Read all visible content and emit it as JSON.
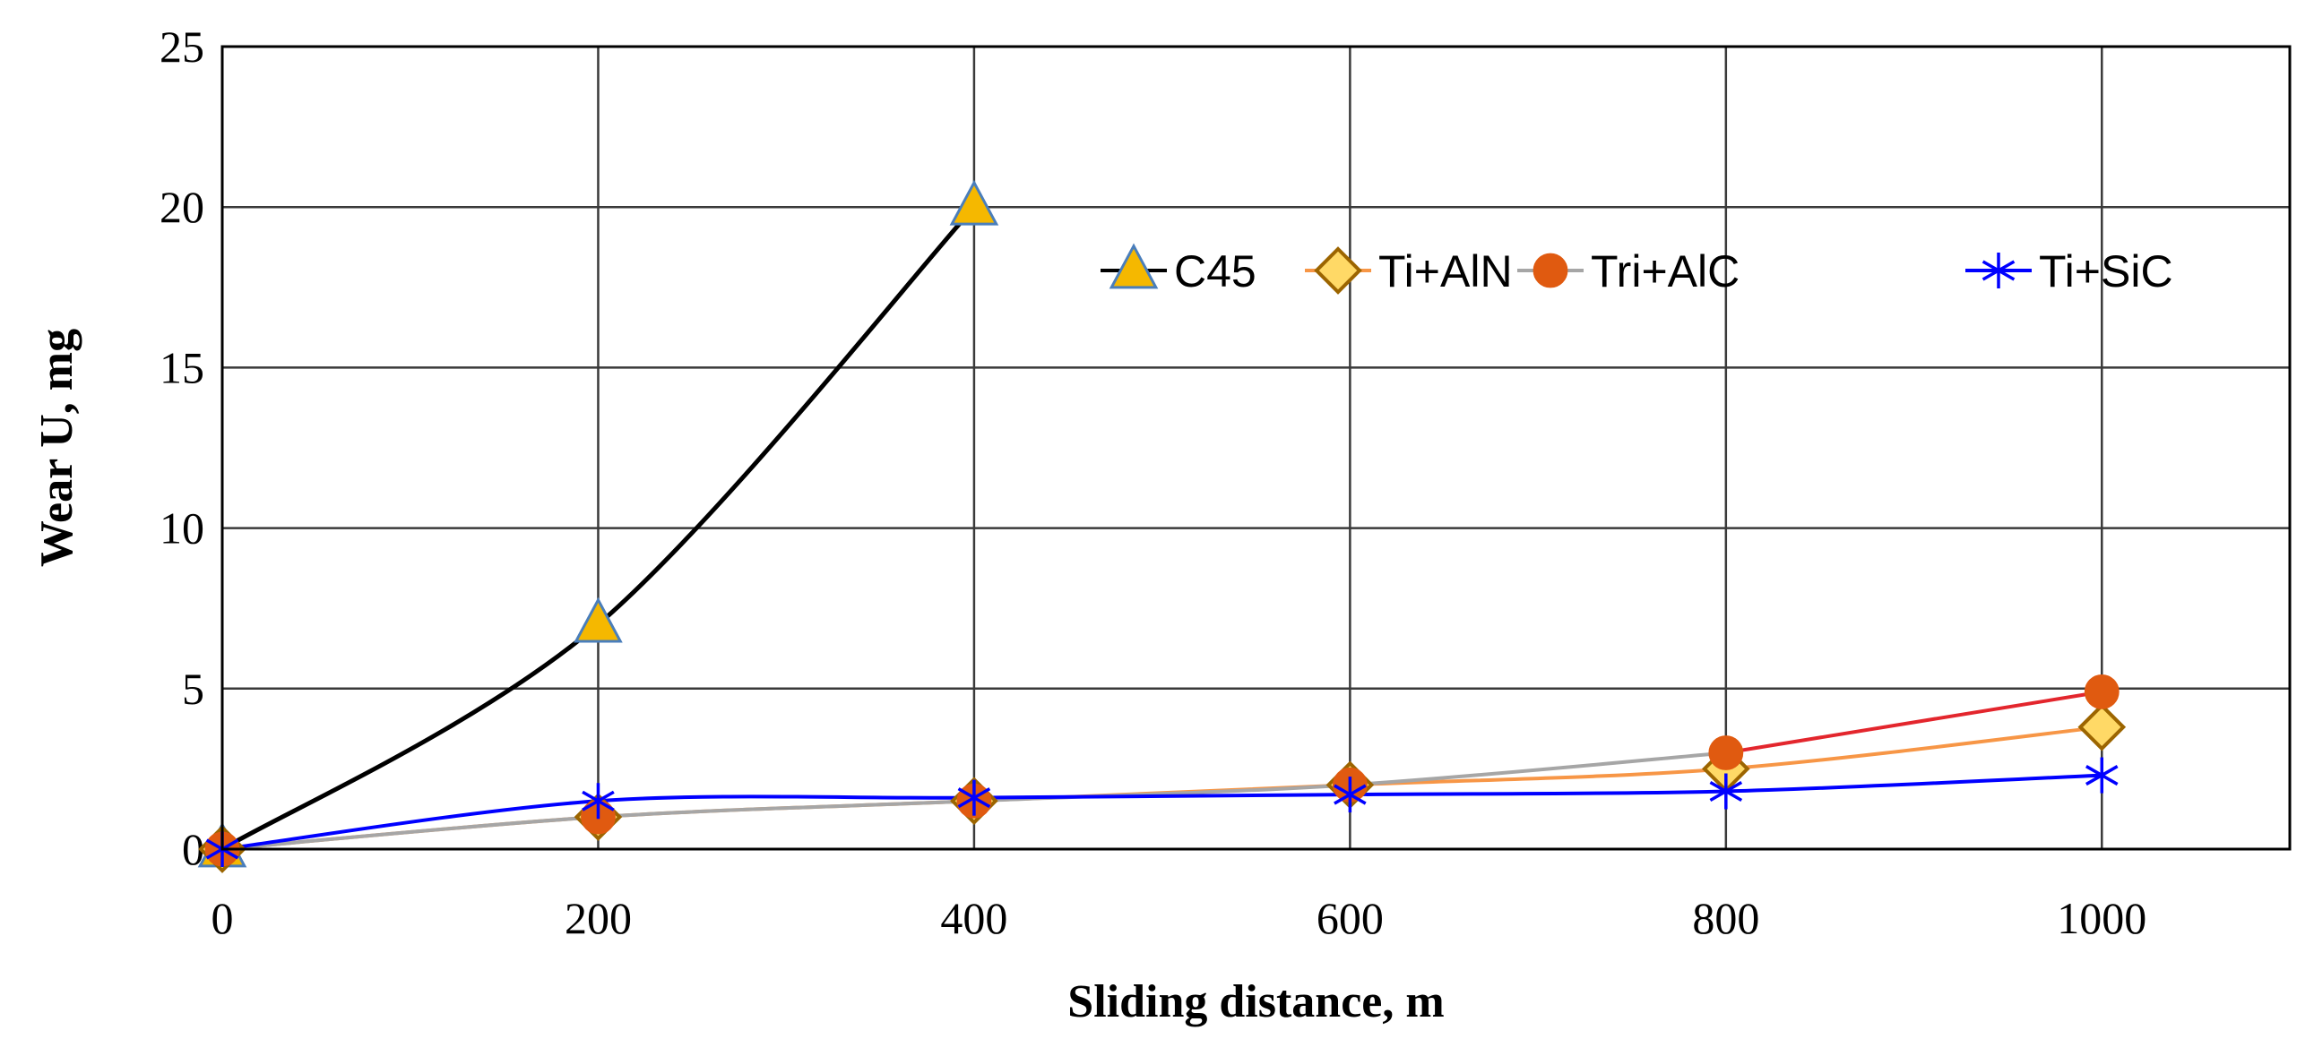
{
  "chart_data": {
    "type": "line",
    "title": "",
    "xlabel": "Sliding distance, m",
    "ylabel": "Wear U, mg",
    "xlim": [
      0,
      1100
    ],
    "ylim": [
      0,
      25
    ],
    "xticks": [
      0,
      200,
      400,
      600,
      800,
      1000
    ],
    "yticks": [
      0,
      5,
      10,
      15,
      20,
      25
    ],
    "xtick_labels": [
      "0",
      "200",
      "400",
      "600",
      "800",
      "1000"
    ],
    "ytick_labels": [
      "0",
      "5",
      "10",
      "15",
      "20",
      "25"
    ],
    "grid": true,
    "legend_position": "top-right",
    "series": [
      {
        "name": "C45",
        "marker": "triangle",
        "line_color": "#000000",
        "marker_fill": "#F5B800",
        "marker_stroke": "#4A7EBB",
        "x": [
          0,
          200,
          400
        ],
        "y": [
          0,
          7,
          20
        ]
      },
      {
        "name": "Ti+AlN",
        "marker": "diamond",
        "line_color": "#F79646",
        "marker_fill": "#FFD966",
        "marker_stroke": "#9C6500",
        "x": [
          0,
          200,
          400,
          600,
          800,
          1000
        ],
        "y": [
          0,
          1,
          1.5,
          2,
          2.5,
          3.8
        ]
      },
      {
        "name": "Tri+AlC",
        "marker": "circle",
        "line_color": "#A6A6A6",
        "last_segment_color": "#E3262D",
        "marker_fill": "#E05A10",
        "marker_stroke": "#E05A10",
        "x": [
          0,
          200,
          400,
          600,
          800,
          1000
        ],
        "y": [
          0,
          1,
          1.5,
          2,
          3,
          4.9
        ]
      },
      {
        "name": "Ti+SiC",
        "marker": "asterisk",
        "line_color": "#0000FF",
        "marker_fill": "none",
        "marker_stroke": "#0000FF",
        "x": [
          0,
          200,
          400,
          600,
          800,
          1000
        ],
        "y": [
          0,
          1.5,
          1.6,
          1.7,
          1.8,
          2.3
        ]
      }
    ]
  }
}
